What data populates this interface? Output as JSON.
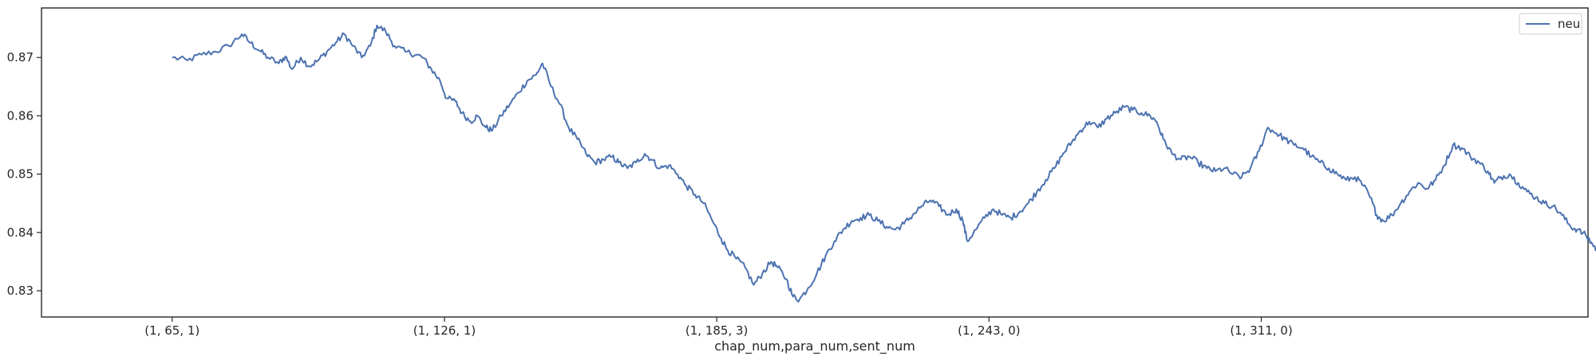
{
  "chart_data": {
    "type": "line",
    "title": "",
    "xlabel": "chap_num,para_num,sent_num",
    "ylabel": "",
    "x_tick_labels": [
      "(1, 65, 1)",
      "(1, 126, 1)",
      "(1, 185, 3)",
      "(1, 243, 0)",
      "(1, 311, 0)"
    ],
    "y_ticks": [
      0.83,
      0.84,
      0.85,
      0.86,
      0.87
    ],
    "y_tick_labels": [
      "0.83",
      "0.84",
      "0.85",
      "0.86",
      "0.87"
    ],
    "ylim": [
      0.8255,
      0.8785
    ],
    "x_index_range": [
      -0.12,
      1.3
    ],
    "x_tick_index": [
      0,
      0.25,
      0.5,
      0.75,
      1.0
    ],
    "grid": false,
    "legend_position": "top-right",
    "series": [
      {
        "name": "neu",
        "color": "#4c72b0",
        "anchors": [
          [
            0.0,
            0.87
          ],
          [
            0.014,
            0.8695
          ],
          [
            0.027,
            0.8705
          ],
          [
            0.04,
            0.871
          ],
          [
            0.052,
            0.872
          ],
          [
            0.064,
            0.874
          ],
          [
            0.072,
            0.8725
          ],
          [
            0.08,
            0.8712
          ],
          [
            0.088,
            0.87
          ],
          [
            0.098,
            0.869
          ],
          [
            0.104,
            0.8702
          ],
          [
            0.11,
            0.868
          ],
          [
            0.118,
            0.87
          ],
          [
            0.126,
            0.8685
          ],
          [
            0.134,
            0.8695
          ],
          [
            0.142,
            0.871
          ],
          [
            0.15,
            0.8725
          ],
          [
            0.158,
            0.874
          ],
          [
            0.166,
            0.872
          ],
          [
            0.174,
            0.87
          ],
          [
            0.182,
            0.872
          ],
          [
            0.188,
            0.8755
          ],
          [
            0.196,
            0.8745
          ],
          [
            0.204,
            0.872
          ],
          [
            0.214,
            0.871
          ],
          [
            0.224,
            0.8705
          ],
          [
            0.23,
            0.87
          ],
          [
            0.238,
            0.868
          ],
          [
            0.246,
            0.866
          ],
          [
            0.252,
            0.863
          ],
          [
            0.26,
            0.8625
          ],
          [
            0.266,
            0.8605
          ],
          [
            0.274,
            0.859
          ],
          [
            0.28,
            0.86
          ],
          [
            0.288,
            0.858
          ],
          [
            0.294,
            0.8575
          ],
          [
            0.302,
            0.86
          ],
          [
            0.31,
            0.862
          ],
          [
            0.318,
            0.864
          ],
          [
            0.326,
            0.866
          ],
          [
            0.334,
            0.867
          ],
          [
            0.34,
            0.869
          ],
          [
            0.348,
            0.865
          ],
          [
            0.356,
            0.862
          ],
          [
            0.364,
            0.858
          ],
          [
            0.372,
            0.856
          ],
          [
            0.38,
            0.8535
          ],
          [
            0.388,
            0.852
          ],
          [
            0.396,
            0.8525
          ],
          [
            0.404,
            0.853
          ],
          [
            0.41,
            0.852
          ],
          [
            0.418,
            0.851
          ],
          [
            0.426,
            0.852
          ],
          [
            0.434,
            0.8535
          ],
          [
            0.44,
            0.8525
          ],
          [
            0.448,
            0.851
          ],
          [
            0.456,
            0.8515
          ],
          [
            0.464,
            0.85
          ],
          [
            0.472,
            0.848
          ],
          [
            0.48,
            0.8465
          ],
          [
            0.488,
            0.845
          ],
          [
            0.496,
            0.842
          ],
          [
            0.504,
            0.839
          ],
          [
            0.51,
            0.837
          ],
          [
            0.518,
            0.8355
          ],
          [
            0.526,
            0.834
          ],
          [
            0.534,
            0.831
          ],
          [
            0.542,
            0.833
          ],
          [
            0.55,
            0.835
          ],
          [
            0.556,
            0.834
          ],
          [
            0.564,
            0.832
          ],
          [
            0.57,
            0.829
          ],
          [
            0.576,
            0.8285
          ],
          [
            0.584,
            0.8305
          ],
          [
            0.592,
            0.833
          ],
          [
            0.6,
            0.836
          ],
          [
            0.608,
            0.8385
          ],
          [
            0.616,
            0.8405
          ],
          [
            0.624,
            0.842
          ],
          [
            0.632,
            0.8425
          ],
          [
            0.64,
            0.843
          ],
          [
            0.648,
            0.842
          ],
          [
            0.656,
            0.841
          ],
          [
            0.664,
            0.8405
          ],
          [
            0.672,
            0.8415
          ],
          [
            0.68,
            0.843
          ],
          [
            0.688,
            0.8445
          ],
          [
            0.696,
            0.8455
          ],
          [
            0.704,
            0.8445
          ],
          [
            0.712,
            0.843
          ],
          [
            0.72,
            0.844
          ],
          [
            0.726,
            0.842
          ],
          [
            0.73,
            0.8385
          ],
          [
            0.738,
            0.8405
          ],
          [
            0.746,
            0.8425
          ],
          [
            0.754,
            0.844
          ],
          [
            0.762,
            0.843
          ],
          [
            0.77,
            0.8425
          ],
          [
            0.778,
            0.8435
          ],
          [
            0.786,
            0.845
          ],
          [
            0.794,
            0.847
          ],
          [
            0.802,
            0.849
          ],
          [
            0.81,
            0.851
          ],
          [
            0.818,
            0.8535
          ],
          [
            0.826,
            0.8555
          ],
          [
            0.834,
            0.8575
          ],
          [
            0.842,
            0.859
          ],
          [
            0.85,
            0.858
          ],
          [
            0.858,
            0.8595
          ],
          [
            0.866,
            0.8605
          ],
          [
            0.874,
            0.8615
          ],
          [
            0.882,
            0.861
          ],
          [
            0.89,
            0.8605
          ],
          [
            0.898,
            0.86
          ],
          [
            0.904,
            0.859
          ],
          [
            0.91,
            0.856
          ],
          [
            0.918,
            0.8535
          ],
          [
            0.926,
            0.8525
          ],
          [
            0.934,
            0.853
          ],
          [
            0.942,
            0.852
          ],
          [
            0.95,
            0.851
          ],
          [
            0.958,
            0.8505
          ],
          [
            0.966,
            0.851
          ],
          [
            0.974,
            0.85
          ],
          [
            0.982,
            0.8495
          ],
          [
            0.99,
            0.851
          ],
          [
            0.998,
            0.854
          ],
          [
            1.006,
            0.858
          ],
          [
            1.014,
            0.857
          ],
          [
            1.022,
            0.856
          ],
          [
            1.03,
            0.855
          ],
          [
            1.038,
            0.8545
          ],
          [
            1.046,
            0.853
          ],
          [
            1.054,
            0.852
          ],
          [
            1.062,
            0.851
          ],
          [
            1.07,
            0.85
          ],
          [
            1.078,
            0.849
          ],
          [
            1.086,
            0.8495
          ],
          [
            1.094,
            0.848
          ],
          [
            1.1,
            0.846
          ],
          [
            1.106,
            0.843
          ],
          [
            1.112,
            0.842
          ],
          [
            1.12,
            0.843
          ],
          [
            1.128,
            0.845
          ],
          [
            1.136,
            0.847
          ],
          [
            1.144,
            0.8485
          ],
          [
            1.152,
            0.8475
          ],
          [
            1.16,
            0.849
          ],
          [
            1.168,
            0.8515
          ],
          [
            1.176,
            0.855
          ],
          [
            1.184,
            0.8545
          ],
          [
            1.192,
            0.853
          ],
          [
            1.2,
            0.852
          ],
          [
            1.208,
            0.8505
          ],
          [
            1.214,
            0.8485
          ],
          [
            1.22,
            0.8495
          ],
          [
            1.228,
            0.85
          ],
          [
            1.236,
            0.8485
          ],
          [
            1.244,
            0.847
          ],
          [
            1.252,
            0.846
          ],
          [
            1.26,
            0.845
          ],
          [
            1.268,
            0.8445
          ],
          [
            1.276,
            0.843
          ],
          [
            1.284,
            0.841
          ],
          [
            1.29,
            0.8405
          ],
          [
            1.298,
            0.8395
          ],
          [
            1.304,
            0.838
          ],
          [
            1.31,
            0.8365
          ],
          [
            1.316,
            0.838
          ],
          [
            1.322,
            0.84
          ],
          [
            1.326,
            0.842
          ],
          [
            1.33,
            0.84
          ],
          [
            1.334,
            0.839
          ]
        ]
      }
    ]
  }
}
